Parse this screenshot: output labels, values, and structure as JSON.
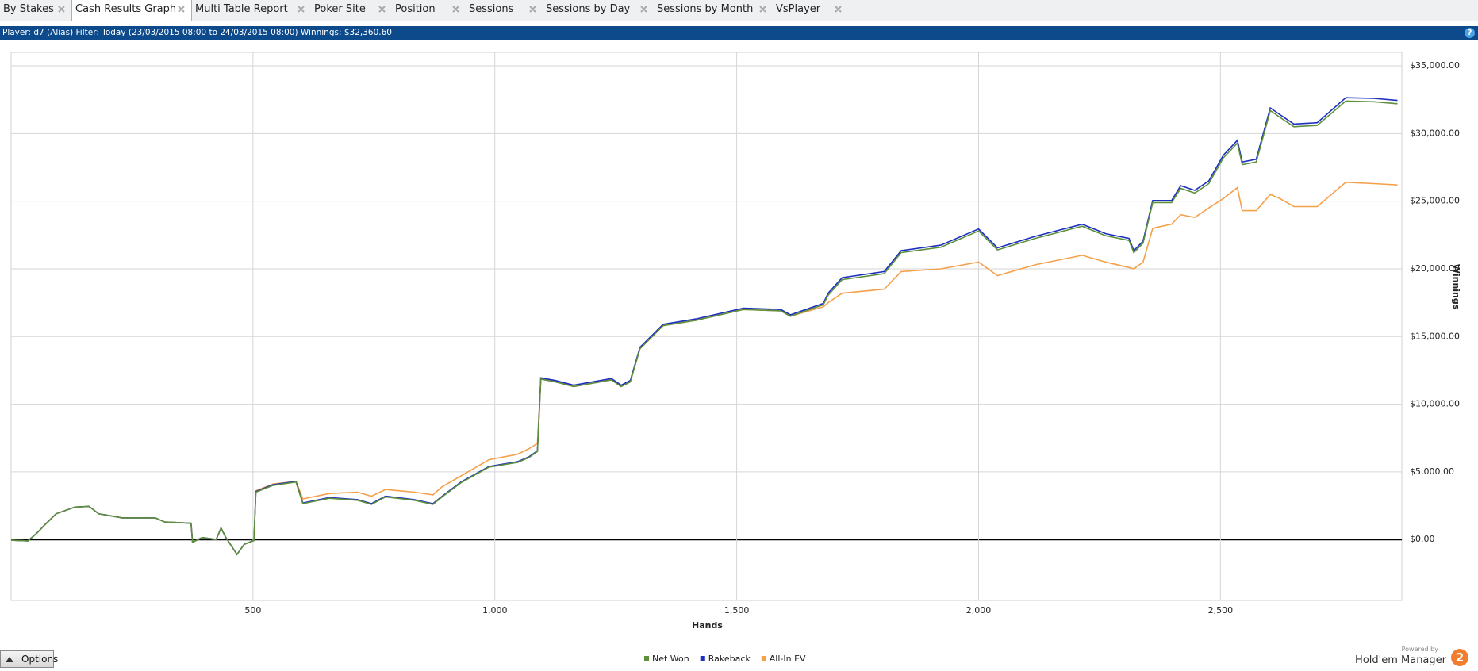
{
  "tabs": [
    "By Stakes",
    "Cash Results Graph",
    "Multi Table Report",
    "Poker Site",
    "Position",
    "Sessions",
    "Sessions by Day",
    "Sessions by Month",
    "VsPlayer"
  ],
  "info_text": "Player: d7 (Alias) Filter: Today (23/03/2015 08:00 to 24/03/2015 08:00) Winnings: $32,360.60",
  "help": "?",
  "options_label": "Options",
  "brand": {
    "powered_by": "Powered by",
    "name": "Hold'em Manager",
    "logo": "2"
  },
  "chart_data": {
    "type": "line",
    "x_label": "Hands",
    "y_label": "Winnings",
    "x": [
      0,
      35,
      54,
      70,
      93,
      132,
      161,
      181,
      230,
      298,
      317,
      372,
      375,
      395,
      424,
      434,
      444,
      467,
      482,
      502,
      506,
      541,
      589,
      603,
      658,
      716,
      745,
      774,
      833,
      872,
      891,
      930,
      988,
      1047,
      1070,
      1088,
      1095,
      1125,
      1163,
      1241,
      1261,
      1280,
      1300,
      1348,
      1416,
      1514,
      1591,
      1611,
      1679,
      1689,
      1718,
      1805,
      1840,
      1922,
      2000,
      2039,
      2117,
      2214,
      2263,
      2311,
      2321,
      2340,
      2360,
      2399,
      2418,
      2447,
      2476,
      2506,
      2535,
      2545,
      2574,
      2603,
      2623,
      2652,
      2700,
      2759,
      2817,
      2866
    ],
    "series": [
      {
        "name": "Net Won",
        "color": "#5e8f3c",
        "values": [
          -50,
          -100,
          500,
          1100,
          1900,
          2400,
          2450,
          1900,
          1600,
          1600,
          1300,
          1200,
          -200,
          150,
          0,
          850,
          150,
          -1100,
          -350,
          -70,
          3500,
          4000,
          4250,
          2650,
          3050,
          2900,
          2600,
          3150,
          2900,
          2600,
          3150,
          4200,
          5350,
          5700,
          6050,
          6500,
          11850,
          11650,
          11300,
          11800,
          11300,
          11650,
          14100,
          15800,
          16200,
          17000,
          16900,
          16500,
          17350,
          18050,
          19200,
          19650,
          21200,
          21600,
          22800,
          21400,
          22250,
          23150,
          22450,
          22100,
          21200,
          21900,
          24900,
          24900,
          25950,
          25600,
          26300,
          28200,
          29300,
          27700,
          27900,
          31700,
          31200,
          30500,
          30600,
          32400,
          32350,
          32200
        ]
      },
      {
        "name": "Rakeback",
        "color": "#1c2fc0",
        "values": [
          -50,
          -100,
          500,
          1100,
          1900,
          2400,
          2450,
          1900,
          1600,
          1600,
          1300,
          1200,
          -200,
          150,
          0,
          850,
          150,
          -1100,
          -350,
          -70,
          3550,
          4050,
          4300,
          2700,
          3100,
          2950,
          2650,
          3200,
          2950,
          2650,
          3200,
          4250,
          5400,
          5750,
          6100,
          6550,
          11950,
          11750,
          11400,
          11900,
          11400,
          11750,
          14200,
          15900,
          16300,
          17100,
          17000,
          16600,
          17450,
          18200,
          19350,
          19800,
          21350,
          21750,
          22950,
          21550,
          22400,
          23300,
          22600,
          22250,
          21350,
          22050,
          25050,
          25050,
          26150,
          25800,
          26500,
          28400,
          29500,
          27900,
          28100,
          31900,
          31400,
          30700,
          30800,
          32650,
          32600,
          32450
        ]
      },
      {
        "name": "All-In EV",
        "color": "#f5a04a",
        "values": [
          -50,
          -100,
          500,
          1100,
          1900,
          2400,
          2450,
          1900,
          1600,
          1600,
          1300,
          1200,
          -200,
          150,
          0,
          850,
          150,
          -1100,
          -350,
          -70,
          3600,
          4100,
          4300,
          3000,
          3400,
          3500,
          3200,
          3700,
          3500,
          3300,
          3900,
          4700,
          5900,
          6300,
          6700,
          7100,
          11900,
          11700,
          11300,
          11800,
          11300,
          11650,
          14100,
          15800,
          16200,
          17000,
          16900,
          16500,
          17200,
          17500,
          18200,
          18500,
          19800,
          20000,
          20500,
          19500,
          20300,
          21000,
          20500,
          20100,
          20000,
          20500,
          23000,
          23300,
          24000,
          23800,
          24500,
          25200,
          26000,
          24300,
          24300,
          25500,
          25200,
          24600,
          24600,
          26400,
          26300,
          26200
        ]
      }
    ],
    "xlim": [
      0,
      2875
    ],
    "ylim": [
      -4500,
      36000
    ],
    "xticks": [
      500,
      {
        "value": 1000,
        "label": "1,000"
      },
      {
        "value": 1500,
        "label": "1,500"
      },
      {
        "value": 2000,
        "label": "2,000"
      },
      {
        "value": 2500,
        "label": "2,500"
      }
    ],
    "yticks": [
      {
        "value": 0,
        "label": "$0.00"
      },
      {
        "value": 5000,
        "label": "$5,000.00"
      },
      {
        "value": 10000,
        "label": "$10,000.00"
      },
      {
        "value": 15000,
        "label": "$15,000.00"
      },
      {
        "value": 20000,
        "label": "$20,000.00"
      },
      {
        "value": 25000,
        "label": "$25,000.00"
      },
      {
        "value": 30000,
        "label": "$30,000.00"
      },
      {
        "value": 35000,
        "label": "$35,000.00"
      }
    ],
    "grid": true,
    "legend": "bottom"
  }
}
